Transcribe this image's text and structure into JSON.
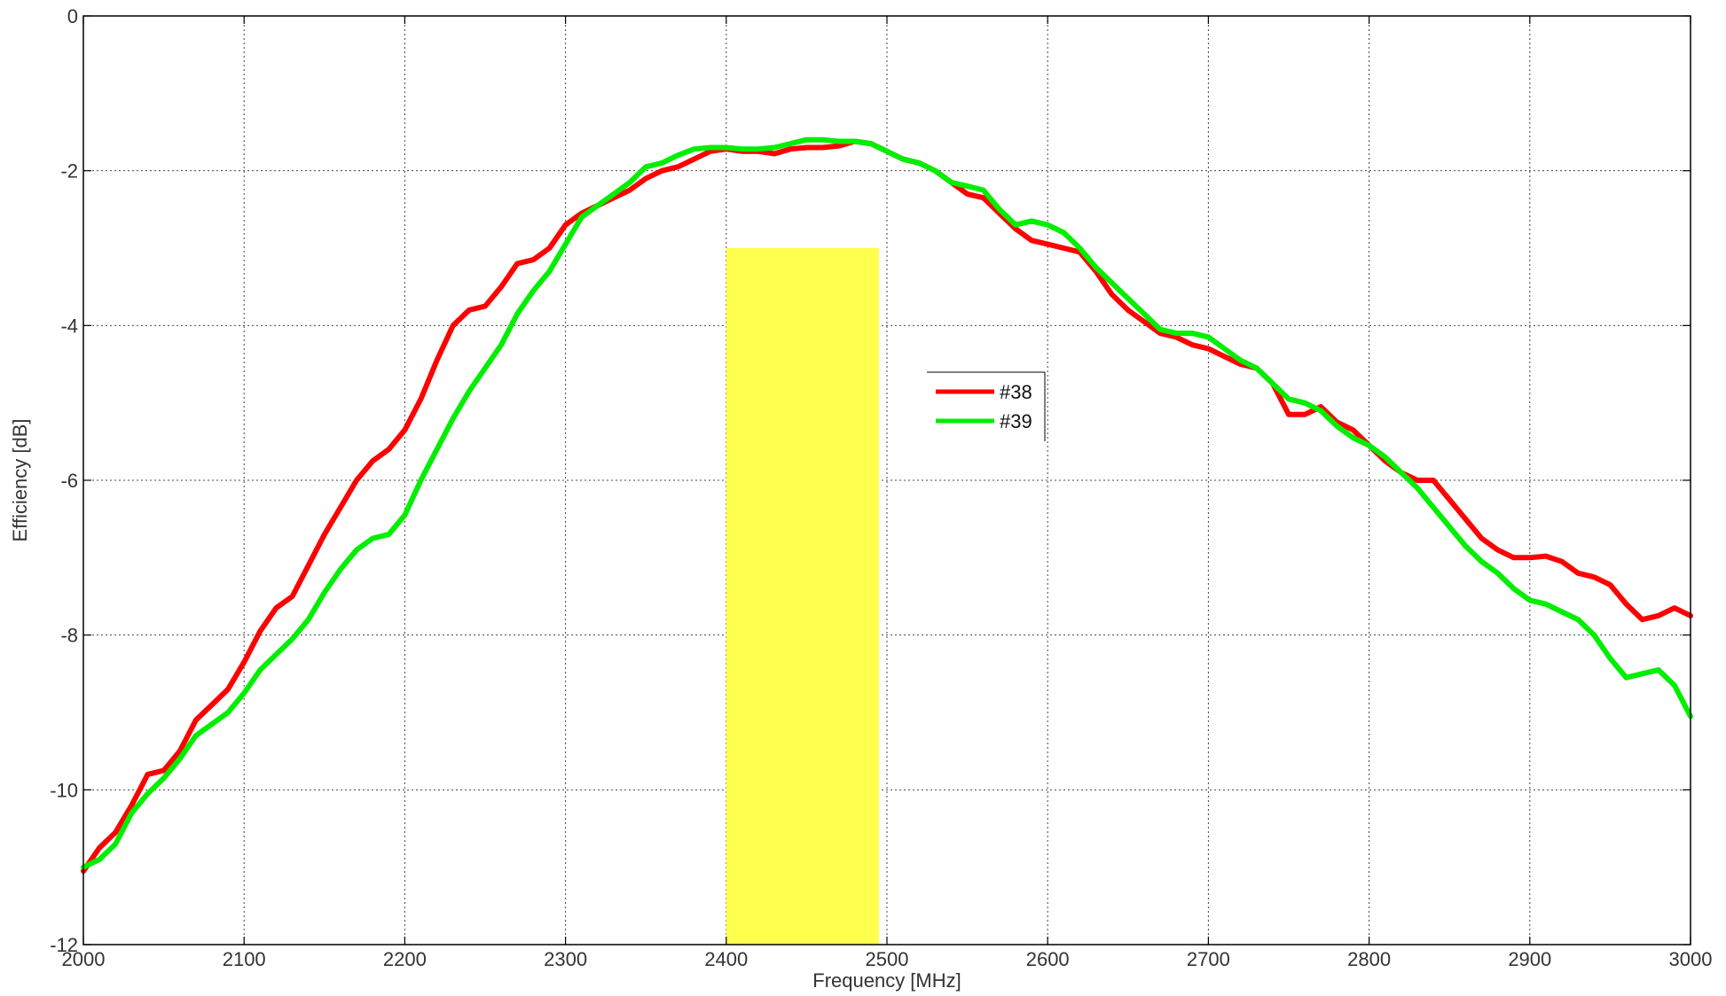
{
  "chart_data": {
    "type": "line",
    "title": "",
    "xlabel": "Frequency [MHz]",
    "ylabel": "Efficiency [dB]",
    "xlim": [
      2000,
      3000
    ],
    "ylim": [
      -12,
      0
    ],
    "grid": true,
    "legend_position": "center-right",
    "x_ticks": [
      2000,
      2100,
      2200,
      2300,
      2400,
      2500,
      2600,
      2700,
      2800,
      2900,
      3000
    ],
    "y_ticks": [
      0,
      -2,
      -4,
      -6,
      -8,
      -10,
      -12
    ],
    "highlight_band": {
      "x_start": 2400,
      "x_end": 2495,
      "y_top": -3,
      "y_bottom": -12,
      "color": "#ffff4d"
    },
    "series": [
      {
        "name": "#38",
        "color": "#ff0000",
        "x": [
          2000,
          2010,
          2020,
          2030,
          2040,
          2050,
          2060,
          2070,
          2080,
          2090,
          2100,
          2110,
          2120,
          2130,
          2140,
          2150,
          2160,
          2170,
          2180,
          2190,
          2200,
          2210,
          2220,
          2230,
          2240,
          2250,
          2260,
          2270,
          2280,
          2290,
          2300,
          2310,
          2320,
          2330,
          2340,
          2350,
          2360,
          2370,
          2380,
          2390,
          2400,
          2410,
          2420,
          2430,
          2440,
          2450,
          2460,
          2470,
          2480,
          2490,
          2500,
          2510,
          2520,
          2530,
          2540,
          2550,
          2560,
          2570,
          2580,
          2590,
          2600,
          2610,
          2620,
          2630,
          2640,
          2650,
          2660,
          2670,
          2680,
          2690,
          2700,
          2710,
          2720,
          2730,
          2740,
          2750,
          2760,
          2770,
          2780,
          2790,
          2800,
          2810,
          2820,
          2830,
          2840,
          2850,
          2860,
          2870,
          2880,
          2890,
          2900,
          2910,
          2920,
          2930,
          2940,
          2950,
          2960,
          2970,
          2980,
          2990,
          3000
        ],
        "y": [
          -11.05,
          -10.75,
          -10.55,
          -10.2,
          -9.8,
          -9.75,
          -9.5,
          -9.1,
          -8.9,
          -8.7,
          -8.35,
          -7.95,
          -7.65,
          -7.5,
          -7.1,
          -6.7,
          -6.35,
          -6.0,
          -5.75,
          -5.6,
          -5.35,
          -4.95,
          -4.45,
          -4.0,
          -3.8,
          -3.75,
          -3.5,
          -3.2,
          -3.15,
          -3.0,
          -2.7,
          -2.55,
          -2.45,
          -2.35,
          -2.25,
          -2.1,
          -2.0,
          -1.95,
          -1.85,
          -1.75,
          -1.72,
          -1.75,
          -1.75,
          -1.78,
          -1.72,
          -1.7,
          -1.7,
          -1.68,
          -1.62,
          -1.65,
          -1.75,
          -1.85,
          -1.9,
          -2.0,
          -2.15,
          -2.3,
          -2.35,
          -2.55,
          -2.75,
          -2.9,
          -2.95,
          -3.0,
          -3.05,
          -3.3,
          -3.6,
          -3.8,
          -3.95,
          -4.1,
          -4.15,
          -4.25,
          -4.3,
          -4.4,
          -4.5,
          -4.55,
          -4.75,
          -5.15,
          -5.15,
          -5.05,
          -5.25,
          -5.35,
          -5.55,
          -5.75,
          -5.9,
          -6.0,
          -6.0,
          -6.25,
          -6.5,
          -6.75,
          -6.9,
          -7.0,
          -7.0,
          -6.98,
          -7.05,
          -7.2,
          -7.25,
          -7.35,
          -7.6,
          -7.8,
          -7.75,
          -7.65,
          -7.75
        ]
      },
      {
        "name": "#39",
        "color": "#00ee00",
        "x": [
          2000,
          2010,
          2020,
          2030,
          2040,
          2050,
          2060,
          2070,
          2080,
          2090,
          2100,
          2110,
          2120,
          2130,
          2140,
          2150,
          2160,
          2170,
          2180,
          2190,
          2200,
          2210,
          2220,
          2230,
          2240,
          2250,
          2260,
          2270,
          2280,
          2290,
          2300,
          2310,
          2320,
          2330,
          2340,
          2350,
          2360,
          2370,
          2380,
          2390,
          2400,
          2410,
          2420,
          2430,
          2440,
          2450,
          2460,
          2470,
          2480,
          2490,
          2500,
          2510,
          2520,
          2530,
          2540,
          2550,
          2560,
          2570,
          2580,
          2590,
          2600,
          2610,
          2620,
          2630,
          2640,
          2650,
          2660,
          2670,
          2680,
          2690,
          2700,
          2710,
          2720,
          2730,
          2740,
          2750,
          2760,
          2770,
          2780,
          2790,
          2800,
          2810,
          2820,
          2830,
          2840,
          2850,
          2860,
          2870,
          2880,
          2890,
          2900,
          2910,
          2920,
          2930,
          2940,
          2950,
          2960,
          2970,
          2980,
          2990,
          3000
        ],
        "y": [
          -11.0,
          -10.9,
          -10.7,
          -10.3,
          -10.05,
          -9.85,
          -9.6,
          -9.3,
          -9.15,
          -9.0,
          -8.75,
          -8.45,
          -8.25,
          -8.05,
          -7.8,
          -7.45,
          -7.15,
          -6.9,
          -6.75,
          -6.7,
          -6.45,
          -6.0,
          -5.6,
          -5.2,
          -4.85,
          -4.55,
          -4.25,
          -3.85,
          -3.55,
          -3.3,
          -2.95,
          -2.6,
          -2.45,
          -2.3,
          -2.15,
          -1.95,
          -1.9,
          -1.8,
          -1.72,
          -1.7,
          -1.7,
          -1.72,
          -1.72,
          -1.7,
          -1.65,
          -1.6,
          -1.6,
          -1.62,
          -1.62,
          -1.65,
          -1.75,
          -1.85,
          -1.9,
          -2.0,
          -2.15,
          -2.2,
          -2.25,
          -2.5,
          -2.7,
          -2.65,
          -2.7,
          -2.8,
          -3.0,
          -3.25,
          -3.45,
          -3.65,
          -3.85,
          -4.05,
          -4.1,
          -4.1,
          -4.15,
          -4.3,
          -4.45,
          -4.55,
          -4.75,
          -4.95,
          -5.0,
          -5.1,
          -5.3,
          -5.45,
          -5.55,
          -5.7,
          -5.9,
          -6.1,
          -6.35,
          -6.6,
          -6.85,
          -7.05,
          -7.2,
          -7.4,
          -7.55,
          -7.6,
          -7.7,
          -7.8,
          -8.0,
          -8.3,
          -8.55,
          -8.5,
          -8.45,
          -8.65,
          -9.05
        ]
      }
    ]
  }
}
